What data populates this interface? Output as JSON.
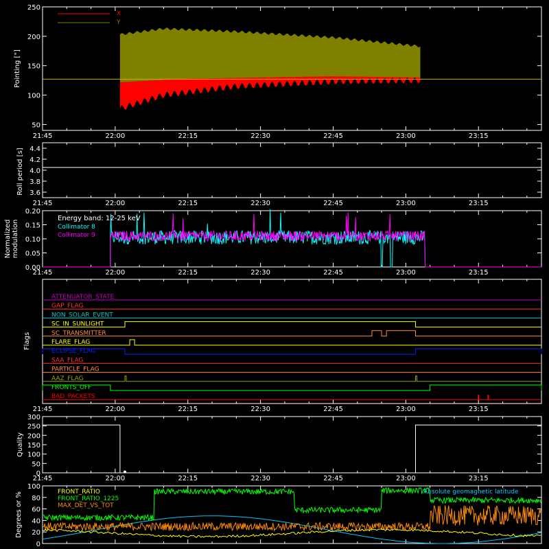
{
  "x_ticks": [
    "21:45",
    "22:00",
    "22:15",
    "22:30",
    "22:45",
    "23:00",
    "23:15"
  ],
  "colors": {
    "x": "#ff0000",
    "y": "#808000",
    "c8": "#00ffff",
    "c9": "#ff00ff",
    "front_ratio": "#ffff00",
    "front_ratio_1225": "#00ff00",
    "max_det": "#ff8c00",
    "lat": "#00c8ff"
  },
  "chart_data": [
    {
      "id": "pointing",
      "type": "area",
      "ylabel": "Pointing [\"]",
      "ylim": [
        40,
        250
      ],
      "yticks": [
        "50",
        "100",
        "150",
        "200",
        "250"
      ],
      "legend": [
        {
          "name": "X",
          "color": "#ff0000"
        },
        {
          "name": "Y",
          "color": "#808000"
        }
      ],
      "xlim": [
        "21:45",
        "23:28"
      ],
      "data_start": "22:01",
      "data_end": "23:03",
      "series": [
        {
          "name": "X",
          "envelope_upper": [
            [
              "22:01",
              205
            ],
            [
              "22:10",
              212
            ],
            [
              "22:25",
              208
            ],
            [
              "22:45",
              198
            ],
            [
              "23:03",
              180
            ]
          ],
          "envelope_lower": [
            [
              "22:01",
              72
            ],
            [
              "22:10",
              95
            ],
            [
              "22:25",
              110
            ],
            [
              "22:45",
              118
            ],
            [
              "23:03",
              120
            ]
          ]
        },
        {
          "name": "Y",
          "envelope_upper": [
            [
              "22:01",
              205
            ],
            [
              "22:10",
              215
            ],
            [
              "22:25",
              210
            ],
            [
              "22:45",
              200
            ],
            [
              "23:03",
              185
            ]
          ],
          "envelope_lower": [
            [
              "22:01",
              122
            ],
            [
              "22:15",
              128
            ],
            [
              "22:45",
              132
            ],
            [
              "23:03",
              130
            ]
          ]
        }
      ],
      "hline": 127
    },
    {
      "id": "roll",
      "type": "line",
      "ylabel": "Roll period [s]",
      "ylim": [
        3.5,
        4.5
      ],
      "yticks": [
        "3.6",
        "3.8",
        "4.0",
        "4.2",
        "4.4"
      ],
      "value": 4.05
    },
    {
      "id": "modulation",
      "type": "line",
      "ylabel": "Normalized\nmodulation",
      "ylim": [
        0,
        0.2
      ],
      "yticks": [
        "0.00",
        "0.05",
        "0.10",
        "0.15",
        "0.20"
      ],
      "annotations": [
        "Energy band: 12-25 keV",
        "Collimator 8",
        "Collimator 9"
      ],
      "series": [
        {
          "name": "Collimator 8",
          "start": "21:59",
          "end": "23:04",
          "mean": 0.105,
          "spread": 0.025,
          "dropouts": [
            "22:55",
            "22:57"
          ]
        },
        {
          "name": "Collimator 9",
          "start": "21:59",
          "end": "23:04",
          "mean": 0.11,
          "spread": 0.02
        }
      ]
    },
    {
      "id": "flags",
      "type": "line",
      "ylabel": "Flags",
      "flags": [
        {
          "name": "ATTENUATOR_STATE",
          "color": "#c000c0",
          "steps": []
        },
        {
          "name": "GAP_FLAG",
          "color": "#ff3030",
          "steps": []
        },
        {
          "name": "NON_SOLAR_EVENT",
          "color": "#00c8c8",
          "steps": []
        },
        {
          "name": "SC_IN_SUNLIGHT",
          "color": "#ffff00",
          "steps": [
            [
              "22:02",
              "23:02"
            ]
          ]
        },
        {
          "name": "SC_TRANSMITTER",
          "color": "#ff8c40",
          "steps": [
            [
              "22:53",
              "22:55"
            ],
            [
              "22:56",
              "23:02"
            ]
          ]
        },
        {
          "name": "FLARE_FLAG",
          "color": "#ffff00",
          "steps": [
            [
              "22:03",
              "22:04"
            ]
          ]
        },
        {
          "name": "ECLIPSE_FLAG",
          "color": "#0020ff",
          "steps": [
            [
              "21:45",
              "22:02"
            ],
            [
              "23:02",
              "23:28"
            ]
          ]
        },
        {
          "name": "SAA_FLAG",
          "color": "#ff3030",
          "steps": []
        },
        {
          "name": "PARTICLE_FLAG",
          "color": "#ff8c40",
          "steps": []
        },
        {
          "name": "AAZ_FLAG",
          "color": "#a0a000",
          "steps": [
            [
              "22:02",
              "22:02"
            ],
            [
              "23:02",
              "23:02"
            ]
          ]
        },
        {
          "name": "FRONTS_OFF",
          "color": "#00ff00",
          "steps": [
            [
              "21:45",
              "21:59"
            ],
            [
              "23:05",
              "23:28"
            ]
          ]
        },
        {
          "name": "BAD_PACKETS",
          "color": "#ff0000",
          "spikes": [
            "23:15",
            "23:17"
          ]
        }
      ]
    },
    {
      "id": "quality",
      "type": "line",
      "ylabel": "Quality",
      "ylim": [
        0,
        300
      ],
      "yticks": [
        "0",
        "50",
        "100",
        "150",
        "200",
        "250",
        "300"
      ],
      "points": [
        [
          "21:45",
          255
        ],
        [
          "22:01",
          255
        ],
        [
          "22:01",
          0
        ],
        [
          "23:02",
          0
        ],
        [
          "23:02",
          255
        ],
        [
          "23:28",
          255
        ]
      ]
    },
    {
      "id": "ratios",
      "type": "line",
      "ylabel": "Degrees or %",
      "ylim": [
        0,
        100
      ],
      "yticks": [
        "0",
        "20",
        "40",
        "60",
        "80",
        "100"
      ],
      "legend": [
        {
          "name": "FRONT_RATIO",
          "color": "#ffff00"
        },
        {
          "name": "FRONT_RATIO_1225",
          "color": "#00ff00"
        },
        {
          "name": "MAX_DET_VS_TOT",
          "color": "#ff8c00"
        },
        {
          "name": "Absolute geomagnetic latitude",
          "color": "#00c8ff"
        }
      ]
    }
  ]
}
